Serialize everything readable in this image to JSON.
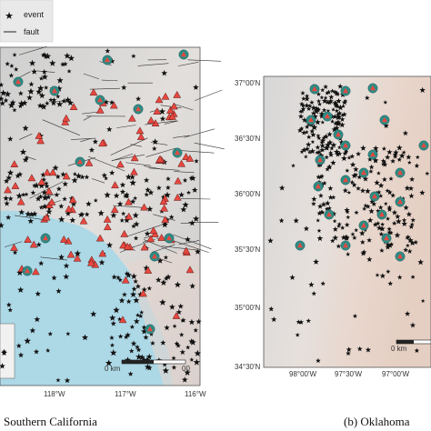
{
  "legend": {
    "event_label": "event",
    "fault_label": "fault"
  },
  "panel_a": {
    "caption": "Southern California",
    "lon_ticks": [
      "118°W",
      "117°W",
      "116°W"
    ],
    "scale_label": "0 km",
    "scale_label_end": "00"
  },
  "panel_b": {
    "caption": "(b)  Oklahoma",
    "lat_ticks": [
      "37°00'N",
      "36°30'N",
      "36°00'N",
      "35°30'N",
      "35°00'N",
      "34°30'N"
    ],
    "lon_ticks": [
      "98°00'W",
      "97°30'W",
      "97°00'W"
    ],
    "scale_label": "0 km"
  },
  "colors": {
    "station_triangle": "#e8473f",
    "station_circle": "#2e8b84",
    "ocean": "#add8e6",
    "terrain": "#d9d9d9",
    "event_marker": "#111111"
  }
}
